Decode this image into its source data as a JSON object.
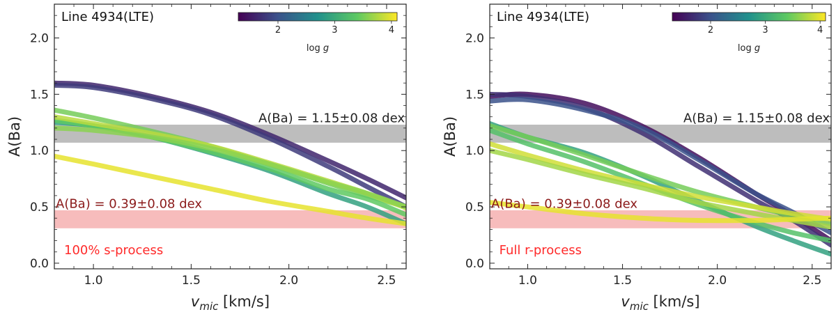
{
  "chart_data": [
    {
      "type": "line",
      "title": "Line 4934(LTE)",
      "xlabel_main": "v",
      "xlabel_sub": "mic",
      "xlabel_unit": " [km/s]",
      "ylabel": "A(Ba)",
      "xlim": [
        0.8,
        2.6
      ],
      "ylim": [
        -0.05,
        2.3
      ],
      "xticks": [
        "1.0",
        "1.5",
        "2.0",
        "2.5"
      ],
      "xtick_values": [
        1.0,
        1.5,
        2.0,
        2.5
      ],
      "yticks": [
        "0.0",
        "0.5",
        "1.0",
        "1.5",
        "2.0"
      ],
      "ytick_values": [
        0.0,
        0.5,
        1.0,
        1.5,
        2.0
      ],
      "bands": [
        {
          "name": "gray-band",
          "low": 1.07,
          "high": 1.23,
          "color": "#bdbdbd",
          "label": "A(Ba) = 1.15±0.08 dex",
          "label_color": "#222222",
          "label_anchor": "end",
          "label_x": 2.6,
          "label_y": 1.24
        },
        {
          "name": "red-band",
          "low": 0.31,
          "high": 0.47,
          "color": "#f7bcbc",
          "label": "A(Ba) = 0.39±0.08 dex",
          "label_color": "#8b1a1a",
          "label_anchor": "start",
          "label_x": 0.8,
          "label_y": 0.48
        }
      ],
      "annotation": {
        "text": "100% s-process",
        "color": "#ff2a2a",
        "x": 0.85,
        "y": 0.08
      },
      "colorbar": {
        "label_main": "log ",
        "label_italic": "g",
        "vmin": 1.3,
        "vmax": 4.1,
        "ticks": [
          "2",
          "3",
          "4"
        ],
        "tick_values": [
          2,
          3,
          4
        ]
      },
      "series": [
        {
          "name": "logg-1.6-a",
          "logg": 1.6,
          "points": [
            [
              0.8,
              1.6
            ],
            [
              1.0,
              1.58
            ],
            [
              1.3,
              1.48
            ],
            [
              1.6,
              1.34
            ],
            [
              1.9,
              1.14
            ],
            [
              2.2,
              0.91
            ],
            [
              2.4,
              0.75
            ],
            [
              2.6,
              0.58
            ]
          ]
        },
        {
          "name": "logg-1.8-a",
          "logg": 1.8,
          "points": [
            [
              0.8,
              1.58
            ],
            [
              1.0,
              1.56
            ],
            [
              1.3,
              1.46
            ],
            [
              1.6,
              1.32
            ],
            [
              1.9,
              1.11
            ],
            [
              2.2,
              0.86
            ],
            [
              2.4,
              0.68
            ],
            [
              2.6,
              0.5
            ]
          ]
        },
        {
          "name": "logg-2.9-a",
          "logg": 2.9,
          "points": [
            [
              0.8,
              1.25
            ],
            [
              1.0,
              1.22
            ],
            [
              1.3,
              1.12
            ],
            [
              1.6,
              0.98
            ],
            [
              1.9,
              0.82
            ],
            [
              2.2,
              0.62
            ],
            [
              2.4,
              0.5
            ],
            [
              2.6,
              0.35
            ]
          ]
        },
        {
          "name": "logg-3.5-a",
          "logg": 3.5,
          "points": [
            [
              0.8,
              1.36
            ],
            [
              1.0,
              1.29
            ],
            [
              1.3,
              1.17
            ],
            [
              1.6,
              1.04
            ],
            [
              1.9,
              0.88
            ],
            [
              2.2,
              0.71
            ],
            [
              2.4,
              0.6
            ],
            [
              2.6,
              0.5
            ]
          ]
        },
        {
          "name": "logg-3.4-a",
          "logg": 3.4,
          "points": [
            [
              0.8,
              1.27
            ],
            [
              1.0,
              1.22
            ],
            [
              1.3,
              1.12
            ],
            [
              1.6,
              0.99
            ],
            [
              1.9,
              0.84
            ],
            [
              2.2,
              0.66
            ],
            [
              2.4,
              0.57
            ],
            [
              2.6,
              0.43
            ]
          ]
        },
        {
          "name": "logg-3.8-a",
          "logg": 3.8,
          "points": [
            [
              0.8,
              1.3
            ],
            [
              1.0,
              1.24
            ],
            [
              1.3,
              1.15
            ],
            [
              1.6,
              1.04
            ],
            [
              1.9,
              0.89
            ],
            [
              2.2,
              0.73
            ],
            [
              2.4,
              0.62
            ],
            [
              2.6,
              0.49
            ]
          ]
        },
        {
          "name": "logg-3.6-a",
          "logg": 3.6,
          "points": [
            [
              0.8,
              1.2
            ],
            [
              1.0,
              1.18
            ],
            [
              1.3,
              1.12
            ],
            [
              1.6,
              1.02
            ],
            [
              1.9,
              0.88
            ],
            [
              2.2,
              0.72
            ],
            [
              2.4,
              0.62
            ],
            [
              2.6,
              0.5
            ]
          ]
        },
        {
          "name": "logg-4.0-a",
          "logg": 4.0,
          "points": [
            [
              0.8,
              0.95
            ],
            [
              1.0,
              0.88
            ],
            [
              1.3,
              0.77
            ],
            [
              1.6,
              0.66
            ],
            [
              1.9,
              0.55
            ],
            [
              2.2,
              0.46
            ],
            [
              2.4,
              0.4
            ],
            [
              2.6,
              0.35
            ]
          ]
        }
      ]
    },
    {
      "type": "line",
      "title": "Line 4934(LTE)",
      "xlabel_main": "v",
      "xlabel_sub": "mic",
      "xlabel_unit": " [km/s]",
      "ylabel": "A(Ba)",
      "xlim": [
        0.8,
        2.6
      ],
      "ylim": [
        -0.05,
        2.3
      ],
      "xticks": [
        "1.0",
        "1.5",
        "2.0",
        "2.5"
      ],
      "xtick_values": [
        1.0,
        1.5,
        2.0,
        2.5
      ],
      "yticks": [
        "0.0",
        "0.5",
        "1.0",
        "1.5",
        "2.0"
      ],
      "ytick_values": [
        0.0,
        0.5,
        1.0,
        1.5,
        2.0
      ],
      "bands": [
        {
          "name": "gray-band",
          "low": 1.07,
          "high": 1.23,
          "color": "#bdbdbd",
          "label": "A(Ba) = 1.15±0.08 dex",
          "label_color": "#222222",
          "label_anchor": "end",
          "label_x": 2.6,
          "label_y": 1.24
        },
        {
          "name": "red-band",
          "low": 0.31,
          "high": 0.47,
          "color": "#f7bcbc",
          "label": "A(Ba) = 0.39±0.08 dex",
          "label_color": "#8b1a1a",
          "label_anchor": "start",
          "label_x": 0.8,
          "label_y": 0.48
        }
      ],
      "annotation": {
        "text": "Full r-process",
        "color": "#ff2a2a",
        "x": 0.85,
        "y": 0.08
      },
      "colorbar": {
        "label_main": "log ",
        "label_italic": "g",
        "vmin": 1.3,
        "vmax": 4.1,
        "ticks": [
          "2",
          "3",
          "4"
        ],
        "tick_values": [
          2,
          3,
          4
        ]
      },
      "series": [
        {
          "name": "logg-1.4-a",
          "logg": 1.4,
          "points": [
            [
              0.8,
              1.48
            ],
            [
              1.0,
              1.5
            ],
            [
              1.3,
              1.42
            ],
            [
              1.6,
              1.22
            ],
            [
              1.9,
              0.94
            ],
            [
              2.2,
              0.62
            ],
            [
              2.4,
              0.42
            ],
            [
              2.6,
              0.2
            ]
          ]
        },
        {
          "name": "logg-1.7-a",
          "logg": 1.7,
          "points": [
            [
              0.8,
              1.5
            ],
            [
              1.0,
              1.48
            ],
            [
              1.3,
              1.38
            ],
            [
              1.6,
              1.16
            ],
            [
              1.9,
              0.86
            ],
            [
              2.2,
              0.56
            ],
            [
              2.4,
              0.38
            ],
            [
              2.6,
              0.16
            ]
          ]
        },
        {
          "name": "logg-2.0-a",
          "logg": 2.0,
          "points": [
            [
              0.8,
              1.44
            ],
            [
              1.0,
              1.45
            ],
            [
              1.3,
              1.36
            ],
            [
              1.6,
              1.2
            ],
            [
              1.9,
              0.92
            ],
            [
              2.2,
              0.62
            ],
            [
              2.4,
              0.45
            ],
            [
              2.6,
              0.27
            ]
          ]
        },
        {
          "name": "logg-2.9-a",
          "logg": 2.9,
          "points": [
            [
              0.8,
              1.24
            ],
            [
              1.0,
              1.12
            ],
            [
              1.3,
              0.98
            ],
            [
              1.6,
              0.78
            ],
            [
              1.9,
              0.55
            ],
            [
              2.2,
              0.33
            ],
            [
              2.4,
              0.2
            ],
            [
              2.6,
              0.08
            ]
          ]
        },
        {
          "name": "logg-3.5-a",
          "logg": 3.5,
          "points": [
            [
              0.8,
              1.22
            ],
            [
              1.0,
              1.12
            ],
            [
              1.3,
              0.96
            ],
            [
              1.6,
              0.79
            ],
            [
              1.9,
              0.63
            ],
            [
              2.2,
              0.5
            ],
            [
              2.4,
              0.42
            ],
            [
              2.6,
              0.35
            ]
          ]
        },
        {
          "name": "logg-3.3-a",
          "logg": 3.3,
          "points": [
            [
              0.8,
              1.18
            ],
            [
              1.0,
              1.06
            ],
            [
              1.3,
              0.9
            ],
            [
              1.6,
              0.71
            ],
            [
              1.9,
              0.52
            ],
            [
              2.2,
              0.36
            ],
            [
              2.4,
              0.27
            ],
            [
              2.6,
              0.2
            ]
          ]
        },
        {
          "name": "logg-3.9-a",
          "logg": 3.9,
          "points": [
            [
              0.8,
              1.06
            ],
            [
              1.0,
              0.96
            ],
            [
              1.3,
              0.82
            ],
            [
              1.6,
              0.7
            ],
            [
              1.9,
              0.59
            ],
            [
              2.2,
              0.5
            ],
            [
              2.4,
              0.44
            ],
            [
              2.6,
              0.39
            ]
          ]
        },
        {
          "name": "logg-3.7-a",
          "logg": 3.7,
          "points": [
            [
              0.8,
              1.0
            ],
            [
              1.0,
              0.92
            ],
            [
              1.3,
              0.79
            ],
            [
              1.6,
              0.67
            ],
            [
              1.9,
              0.54
            ],
            [
              2.2,
              0.44
            ],
            [
              2.4,
              0.38
            ],
            [
              2.6,
              0.32
            ]
          ]
        },
        {
          "name": "logg-4.0-a",
          "logg": 4.0,
          "points": [
            [
              0.8,
              0.54
            ],
            [
              1.0,
              0.5
            ],
            [
              1.3,
              0.44
            ],
            [
              1.6,
              0.4
            ],
            [
              1.9,
              0.38
            ],
            [
              2.2,
              0.38
            ],
            [
              2.4,
              0.39
            ],
            [
              2.6,
              0.4
            ]
          ]
        }
      ]
    }
  ]
}
